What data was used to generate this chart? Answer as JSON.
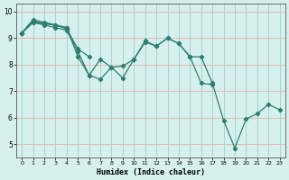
{
  "xlabel": "Humidex (Indice chaleur)",
  "ylabel": "",
  "background_color": "#d6f0ee",
  "grid_color_h": "#e8b8b8",
  "grid_color_v": "#a8d4cc",
  "line_color": "#2d7f72",
  "xlim": [
    -0.5,
    23.5
  ],
  "ylim": [
    4.5,
    10.3
  ],
  "yticks": [
    5,
    6,
    7,
    8,
    9,
    10
  ],
  "xticks": [
    0,
    1,
    2,
    3,
    4,
    5,
    6,
    7,
    8,
    9,
    10,
    11,
    12,
    13,
    14,
    15,
    16,
    17,
    18,
    19,
    20,
    21,
    22,
    23
  ],
  "series": [
    [
      [
        0,
        1,
        2,
        3,
        4
      ],
      [
        9.2,
        9.7,
        9.6,
        9.5,
        9.4
      ]
    ],
    [
      [
        0,
        1,
        2,
        3,
        4,
        5,
        6,
        7,
        8,
        9,
        10,
        11,
        12,
        13,
        14,
        15,
        16,
        17
      ],
      [
        9.2,
        9.65,
        9.55,
        9.5,
        9.4,
        8.3,
        7.6,
        8.2,
        7.9,
        7.5,
        8.2,
        8.9,
        8.7,
        9.0,
        8.8,
        8.3,
        7.3,
        7.25
      ]
    ],
    [
      [
        0,
        1,
        2,
        3,
        4,
        5,
        6
      ],
      [
        9.2,
        9.6,
        9.55,
        9.5,
        9.35,
        8.6,
        8.3
      ]
    ],
    [
      [
        0,
        1,
        2,
        3,
        4,
        5,
        6,
        7,
        8,
        9,
        10,
        11,
        12,
        13,
        14,
        15,
        16,
        17,
        18,
        19,
        20,
        21,
        22,
        23
      ],
      [
        9.2,
        9.6,
        9.5,
        9.4,
        9.3,
        8.5,
        7.6,
        7.45,
        7.9,
        7.95,
        8.2,
        8.85,
        8.7,
        9.0,
        8.8,
        8.3,
        8.3,
        7.3,
        5.9,
        4.85,
        5.95,
        6.15,
        6.5,
        6.3
      ]
    ]
  ]
}
